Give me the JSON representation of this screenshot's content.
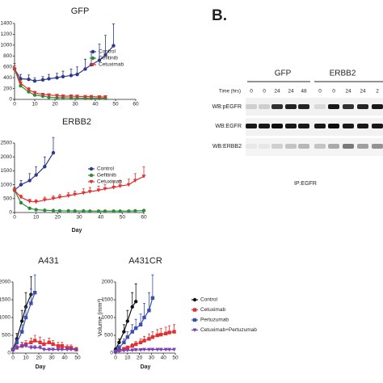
{
  "chart_data": [
    {
      "type": "line",
      "title": "GFP",
      "x": [
        0,
        3,
        7,
        10,
        14,
        17,
        21,
        24,
        28,
        31,
        35,
        38,
        42,
        45,
        49
      ],
      "xlim": [
        0,
        60
      ],
      "xticks": [
        0,
        10,
        20,
        30,
        40,
        50,
        60
      ],
      "ylim": [
        0,
        1400
      ],
      "yticks": [
        0,
        200,
        400,
        600,
        800,
        1000,
        1200,
        1400
      ],
      "series": [
        {
          "name": "Control",
          "color": "#2b3a8c",
          "marker": "circle",
          "values": [
            560,
            380,
            370,
            340,
            360,
            380,
            400,
            420,
            440,
            460,
            560,
            640,
            720,
            820,
            990
          ],
          "errors": [
            100,
            80,
            80,
            60,
            60,
            80,
            80,
            100,
            120,
            140,
            180,
            240,
            300,
            360,
            400
          ]
        },
        {
          "name": "Gefitinib",
          "color": "#2e8b3a",
          "marker": "circle",
          "values": [
            560,
            250,
            140,
            80,
            60,
            40,
            30,
            30,
            25,
            25,
            20,
            20,
            20,
            20,
            null
          ],
          "errors": [
            60,
            40,
            30,
            20,
            15,
            10,
            10,
            10,
            10,
            10,
            10,
            10,
            10,
            10,
            null
          ]
        },
        {
          "name": "Cetuximab",
          "color": "#e03030",
          "marker": "triangle",
          "values": [
            560,
            300,
            180,
            120,
            90,
            80,
            70,
            60,
            60,
            55,
            50,
            50,
            45,
            45,
            null
          ],
          "errors": [
            60,
            50,
            40,
            30,
            20,
            20,
            20,
            15,
            15,
            15,
            15,
            15,
            15,
            15,
            null
          ]
        }
      ]
    },
    {
      "type": "line",
      "title": "ERBB2",
      "x_label": "Day",
      "x": [
        0,
        3,
        7,
        10,
        14,
        18,
        21,
        25,
        28,
        32,
        35,
        39,
        42,
        46,
        49,
        53,
        56,
        60
      ],
      "xlim": [
        0,
        60
      ],
      "xticks": [
        0,
        10,
        20,
        30,
        40,
        50,
        60
      ],
      "ylim": [
        0,
        2500
      ],
      "yticks": [
        0,
        500,
        1000,
        1500,
        2000,
        2500
      ],
      "series": [
        {
          "name": "Control",
          "color": "#2b3a8c",
          "marker": "circle",
          "values": [
            800,
            1000,
            1150,
            1350,
            1650,
            2150,
            null,
            null,
            null,
            null,
            null,
            null,
            null,
            null,
            null,
            null,
            null,
            null
          ],
          "errors": [
            100,
            150,
            250,
            300,
            350,
            550,
            null,
            null,
            null,
            null,
            null,
            null,
            null,
            null,
            null,
            null,
            null,
            null
          ]
        },
        {
          "name": "Gefitinib",
          "color": "#2e8b3a",
          "marker": "circle",
          "values": [
            800,
            350,
            150,
            100,
            80,
            70,
            60,
            60,
            55,
            55,
            50,
            50,
            50,
            50,
            50,
            50,
            60,
            70
          ],
          "errors": [
            60,
            40,
            30,
            20,
            15,
            10,
            10,
            10,
            10,
            10,
            10,
            10,
            10,
            10,
            10,
            10,
            10,
            10
          ]
        },
        {
          "name": "Cetuximab",
          "color": "#e03030",
          "marker": "triangle",
          "values": [
            800,
            550,
            400,
            380,
            450,
            500,
            550,
            600,
            650,
            700,
            750,
            800,
            850,
            900,
            950,
            1000,
            1150,
            1300
          ],
          "errors": [
            80,
            80,
            80,
            80,
            100,
            100,
            100,
            120,
            120,
            150,
            150,
            150,
            150,
            200,
            200,
            200,
            250,
            350
          ]
        }
      ]
    },
    {
      "type": "line",
      "title": "A431",
      "x_label": "Day",
      "x": [
        0,
        3,
        7,
        10,
        14,
        17,
        21,
        24,
        28,
        31,
        35,
        38,
        42,
        45,
        49
      ],
      "xlim": [
        0,
        50
      ],
      "xticks": [
        0,
        10,
        20,
        30,
        40,
        50
      ],
      "ylim": [
        0,
        2000
      ],
      "yticks": [
        0,
        500,
        1000,
        1500,
        2000
      ],
      "series": [
        {
          "color": "#111111",
          "marker": "circle",
          "values": [
            100,
            400,
            900,
            1300,
            1650,
            null,
            null,
            null,
            null,
            null,
            null,
            null,
            null,
            null,
            null
          ],
          "errors": [
            50,
            150,
            300,
            400,
            500,
            null,
            null,
            null,
            null,
            null,
            null,
            null,
            null,
            null,
            null
          ]
        },
        {
          "color": "#e03030",
          "marker": "square",
          "values": [
            100,
            150,
            200,
            250,
            300,
            350,
            300,
            250,
            300,
            250,
            200,
            200,
            150,
            150,
            100
          ],
          "errors": [
            50,
            80,
            100,
            100,
            120,
            150,
            150,
            120,
            120,
            100,
            100,
            100,
            80,
            80,
            60
          ]
        },
        {
          "color": "#3a4fb0",
          "marker": "square",
          "values": [
            100,
            300,
            600,
            1000,
            1400,
            1700,
            null,
            null,
            null,
            null,
            null,
            null,
            null,
            null,
            null
          ],
          "errors": [
            50,
            100,
            200,
            300,
            400,
            500,
            null,
            null,
            null,
            null,
            null,
            null,
            null,
            null,
            null
          ]
        },
        {
          "color": "#7b3fb5",
          "marker": "triangle",
          "values": [
            100,
            150,
            200,
            200,
            150,
            150,
            150,
            100,
            100,
            100,
            100,
            100,
            100,
            100,
            100
          ],
          "errors": [
            40,
            60,
            80,
            80,
            60,
            60,
            60,
            40,
            40,
            40,
            40,
            40,
            40,
            40,
            40
          ]
        }
      ]
    },
    {
      "type": "line",
      "title": "A431CR",
      "x_label": "Day",
      "y_label": "Volume (mm³)",
      "x": [
        0,
        3,
        7,
        10,
        14,
        17,
        21,
        24,
        28,
        31,
        35,
        38,
        42,
        45,
        49
      ],
      "xlim": [
        0,
        50
      ],
      "xticks": [
        0,
        10,
        20,
        30,
        40,
        50
      ],
      "ylim": [
        0,
        2000
      ],
      "yticks": [
        0,
        500,
        1000,
        1500,
        2000
      ],
      "series": [
        {
          "name": "Control",
          "color": "#111111",
          "marker": "circle",
          "values": [
            100,
            300,
            600,
            900,
            1300,
            1450,
            null,
            null,
            null,
            null,
            null,
            null,
            null,
            null,
            null
          ],
          "errors": [
            50,
            100,
            200,
            300,
            400,
            500,
            null,
            null,
            null,
            null,
            null,
            null,
            null,
            null,
            null
          ]
        },
        {
          "name": "Cetuximab",
          "color": "#e03030",
          "marker": "square",
          "values": [
            50,
            80,
            120,
            150,
            200,
            250,
            300,
            350,
            400,
            450,
            500,
            520,
            550,
            580,
            600
          ],
          "errors": [
            20,
            30,
            40,
            50,
            60,
            80,
            100,
            120,
            140,
            150,
            160,
            170,
            180,
            190,
            200
          ]
        },
        {
          "name": "Pertuzumab",
          "color": "#3a4fb0",
          "marker": "square",
          "values": [
            50,
            150,
            300,
            450,
            600,
            700,
            800,
            1000,
            1200,
            1550,
            null,
            null,
            null,
            null,
            null
          ],
          "errors": [
            30,
            60,
            100,
            150,
            200,
            250,
            300,
            400,
            500,
            650,
            null,
            null,
            null,
            null,
            null
          ]
        },
        {
          "name": "Cetuximab+Pertuzumab",
          "color": "#7b3fb5",
          "marker": "triangle",
          "values": [
            50,
            60,
            70,
            80,
            80,
            90,
            90,
            100,
            100,
            100,
            100,
            100,
            100,
            100,
            100
          ],
          "errors": [
            20,
            20,
            30,
            30,
            30,
            30,
            30,
            30,
            30,
            30,
            30,
            30,
            30,
            30,
            30
          ]
        }
      ]
    }
  ],
  "blot": {
    "label": "B.",
    "groups": [
      "GFP",
      "ERBB2"
    ],
    "time_label": "Time (hrs)",
    "times": [
      "0",
      "0",
      "24",
      "24",
      "48",
      "0",
      "0",
      "24",
      "24",
      "2"
    ],
    "rows": [
      "WB:pEGFR",
      "WB:EGFR",
      "WB:ERBB2"
    ],
    "caption": "IP:EGFR"
  }
}
